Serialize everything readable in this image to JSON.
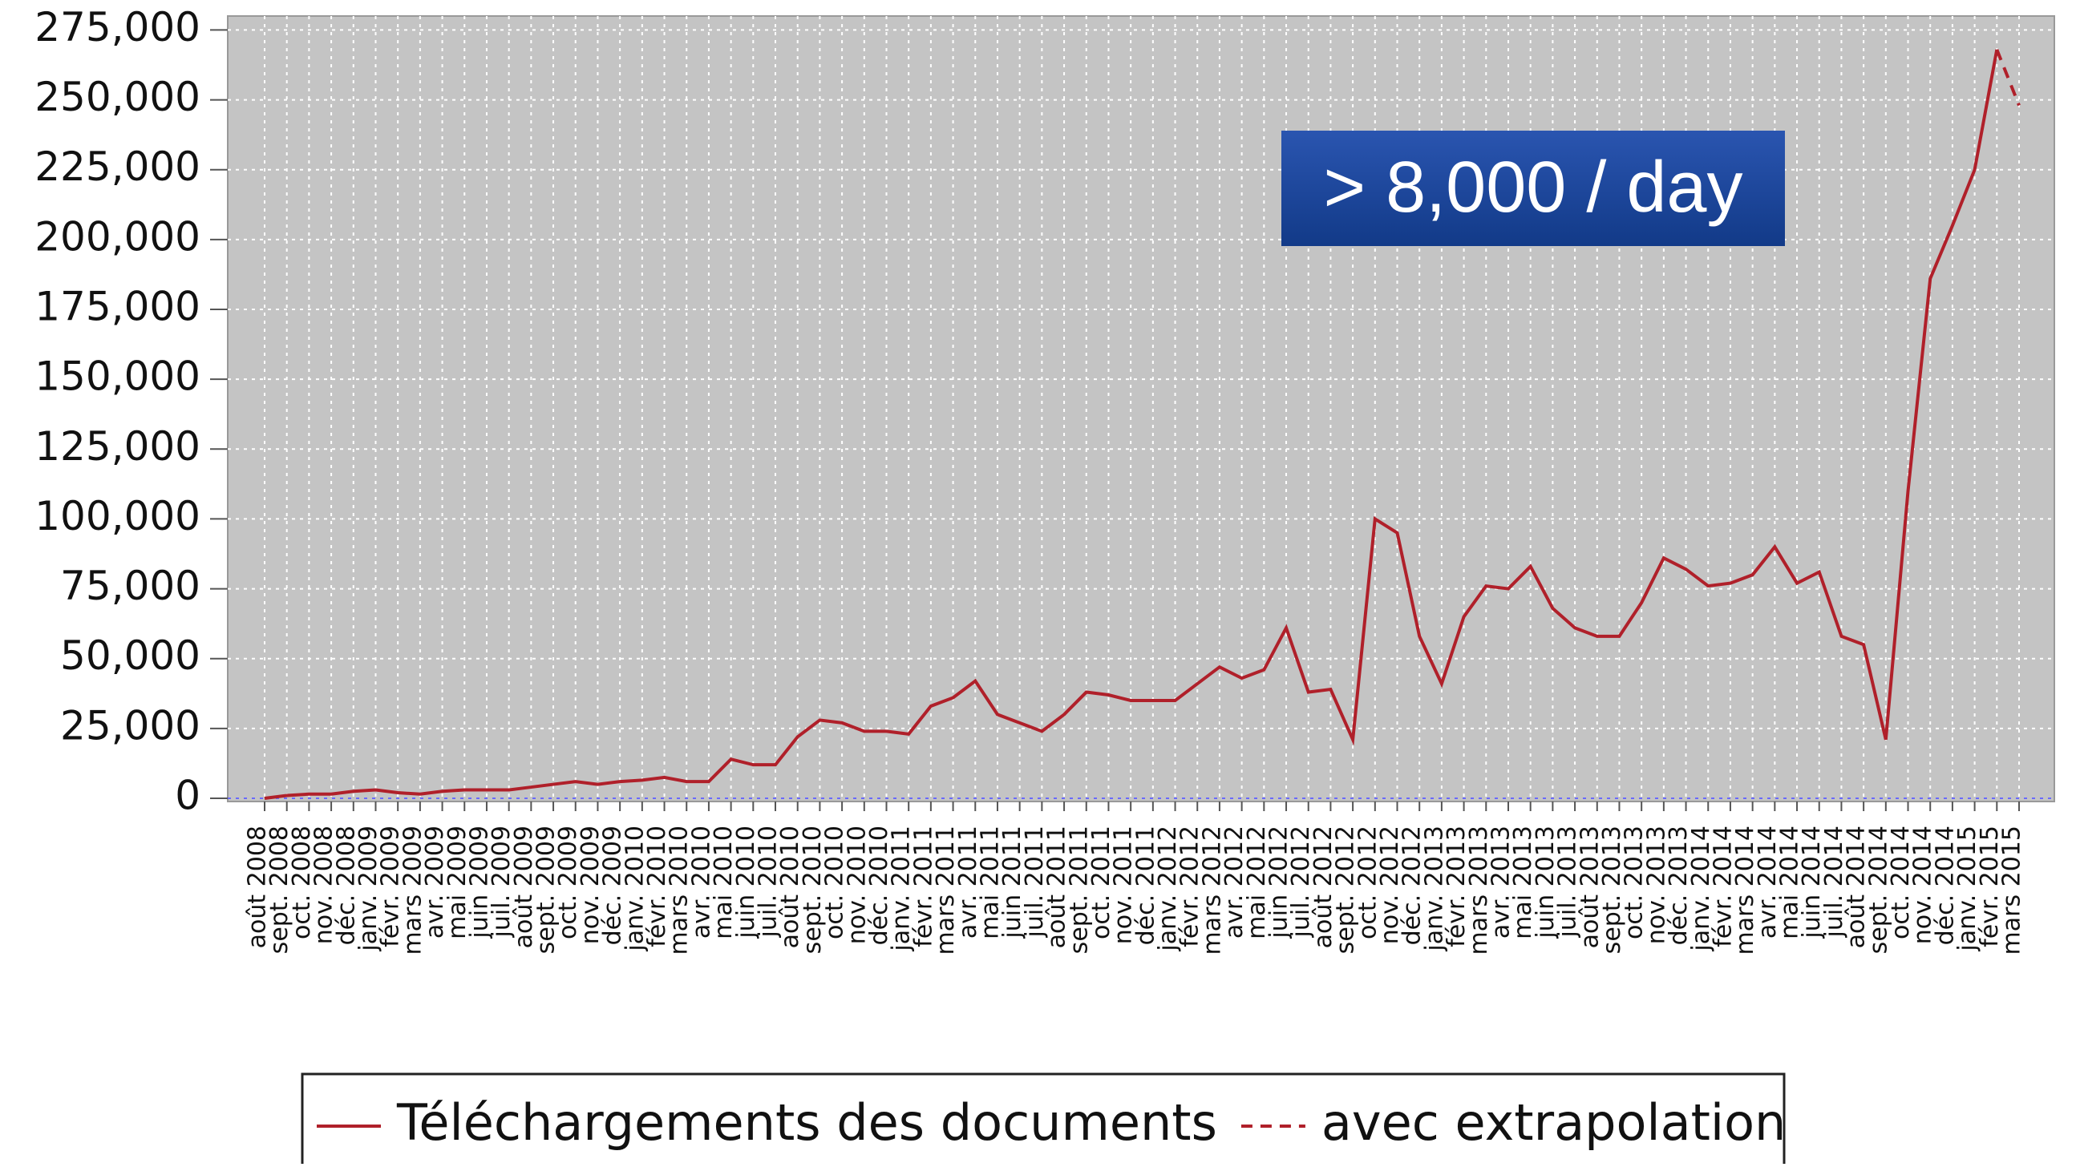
{
  "chart_data": {
    "type": "line",
    "categories": [
      "août 2008",
      "sept. 2008",
      "oct. 2008",
      "nov. 2008",
      "déc. 2008",
      "janv. 2009",
      "févr. 2009",
      "mars 2009",
      "avr. 2009",
      "mai 2009",
      "juin 2009",
      "juil. 2009",
      "août 2009",
      "sept. 2009",
      "oct. 2009",
      "nov. 2009",
      "déc. 2009",
      "janv. 2010",
      "févr. 2010",
      "mars 2010",
      "avr. 2010",
      "mai 2010",
      "juin 2010",
      "juil. 2010",
      "août 2010",
      "sept. 2010",
      "oct. 2010",
      "nov. 2010",
      "déc. 2010",
      "janv. 2011",
      "févr. 2011",
      "mars 2011",
      "avr. 2011",
      "mai 2011",
      "juin 2011",
      "juil. 2011",
      "août 2011",
      "sept. 2011",
      "oct. 2011",
      "nov. 2011",
      "déc. 2011",
      "janv. 2012",
      "févr. 2012",
      "mars 2012",
      "avr. 2012",
      "mai 2012",
      "juin 2012",
      "juil. 2012",
      "août 2012",
      "sept. 2012",
      "oct. 2012",
      "nov. 2012",
      "déc. 2012",
      "janv. 2013",
      "févr. 2013",
      "mars 2013",
      "avr. 2013",
      "mai 2013",
      "juin 2013",
      "juil. 2013",
      "août 2013",
      "sept. 2013",
      "oct. 2013",
      "nov. 2013",
      "déc. 2013",
      "janv. 2014",
      "févr. 2014",
      "mars 2014",
      "avr. 2014",
      "mai 2014",
      "juin 2014",
      "juil. 2014",
      "août 2014",
      "sept. 2014",
      "oct. 2014",
      "nov. 2014",
      "déc. 2014",
      "janv. 2015",
      "févr. 2015",
      "mars 2015"
    ],
    "series": [
      {
        "name": "Téléchargements des documents",
        "color": "#b0202a",
        "style": "solid",
        "values": [
          0,
          1000,
          1500,
          1500,
          2500,
          3000,
          2000,
          1500,
          2500,
          3000,
          3000,
          3000,
          4000,
          5000,
          6000,
          5000,
          6000,
          6500,
          7500,
          6000,
          6000,
          14000,
          12000,
          12000,
          22000,
          28000,
          27000,
          24000,
          24000,
          23000,
          33000,
          36000,
          42000,
          30000,
          27000,
          24000,
          30000,
          38000,
          37000,
          35000,
          35000,
          35000,
          41000,
          47000,
          43000,
          46000,
          61000,
          38000,
          39000,
          21000,
          100000,
          95000,
          58000,
          41000,
          65000,
          76000,
          75000,
          83000,
          68000,
          61000,
          58000,
          58000,
          70000,
          86000,
          82000,
          76000,
          77000,
          80000,
          90000,
          77000,
          81000,
          58000,
          55000,
          21000,
          110000,
          186000,
          205000,
          225000,
          268000,
          null
        ]
      },
      {
        "name": "avec extrapolation",
        "color": "#b0202a",
        "style": "dashed",
        "values": [
          null,
          null,
          null,
          null,
          null,
          null,
          null,
          null,
          null,
          null,
          null,
          null,
          null,
          null,
          null,
          null,
          null,
          null,
          null,
          null,
          null,
          null,
          null,
          null,
          null,
          null,
          null,
          null,
          null,
          null,
          null,
          null,
          null,
          null,
          null,
          null,
          null,
          null,
          null,
          null,
          null,
          null,
          null,
          null,
          null,
          null,
          null,
          null,
          null,
          null,
          null,
          null,
          null,
          null,
          null,
          null,
          null,
          null,
          null,
          null,
          null,
          null,
          null,
          null,
          null,
          null,
          null,
          null,
          null,
          null,
          null,
          null,
          null,
          null,
          null,
          null,
          null,
          null,
          268000,
          248000
        ]
      }
    ],
    "ylim": [
      0,
      280000
    ],
    "yticks": [
      0,
      {
        "value": 25000,
        "label": "25,000"
      },
      {
        "value": 50000,
        "label": "50,000"
      },
      {
        "value": 75000,
        "label": "75,000"
      },
      {
        "value": 100000,
        "label": "100,000"
      },
      {
        "value": 125000,
        "label": "125,000"
      },
      {
        "value": 150000,
        "label": "150,000"
      },
      {
        "value": 175000,
        "label": "175,000"
      },
      {
        "value": 200000,
        "label": "200,000"
      },
      {
        "value": 225000,
        "label": "225,000"
      },
      {
        "value": 250000,
        "label": "250,000"
      },
      {
        "value": 275000,
        "label": "275,000"
      }
    ],
    "grid": true,
    "legend": "bottom",
    "annotations": [
      "> 8,000 / day"
    ]
  }
}
